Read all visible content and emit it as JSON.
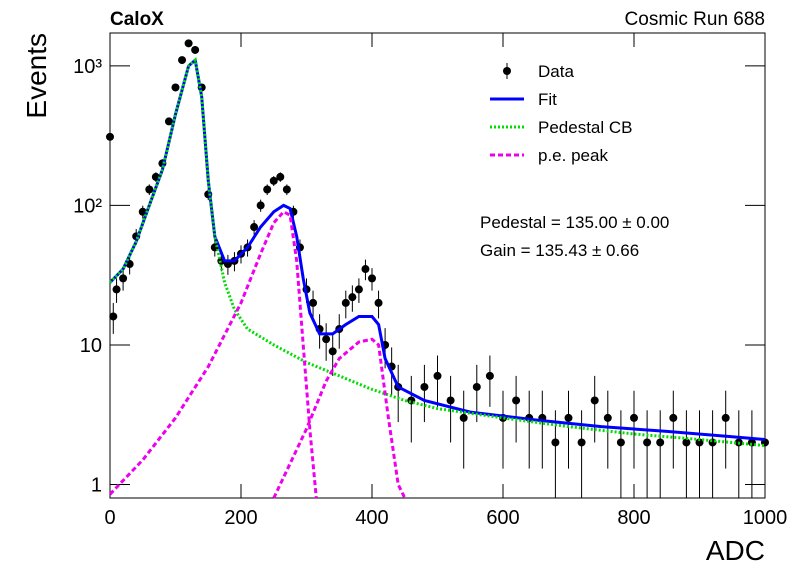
{
  "chart_data": {
    "type": "scatter",
    "title": "CaloX",
    "subtitle": "Cosmic Run 688",
    "xlabel": "ADC",
    "ylabel": "Events",
    "annotations": [
      "Pedestal = 135.00 ± 0.00",
      "Gain = 135.43 ± 0.66"
    ],
    "log_y": true,
    "legend": "upper right",
    "xlim": [
      0,
      1000
    ],
    "ylim": [
      0.8,
      1720
    ],
    "xticks": [
      0,
      200,
      400,
      600,
      800,
      1000
    ],
    "yticks": [
      1,
      10,
      {
        "value": 100,
        "label": "10²"
      },
      {
        "value": 1000,
        "label": "10³"
      }
    ],
    "series": [
      {
        "name": "Data",
        "color": "#000000",
        "style": "points",
        "x": [
          0,
          5,
          10,
          20,
          30,
          40,
          50,
          60,
          70,
          80,
          90,
          100,
          110,
          120,
          130,
          140,
          150,
          160,
          170,
          180,
          190,
          200,
          210,
          220,
          230,
          240,
          250,
          260,
          270,
          280,
          290,
          300,
          310,
          320,
          330,
          340,
          350,
          360,
          370,
          380,
          390,
          400,
          410,
          420,
          430,
          440,
          460,
          480,
          500,
          520,
          540,
          560,
          580,
          600,
          620,
          640,
          660,
          680,
          700,
          720,
          740,
          760,
          780,
          800,
          820,
          840,
          860,
          880,
          900,
          920,
          940,
          960,
          980,
          1000
        ],
        "values": [
          310,
          16,
          25,
          30,
          38,
          60,
          90,
          130,
          160,
          200,
          400,
          700,
          1100,
          1450,
          1300,
          700,
          120,
          50,
          40,
          38,
          40,
          45,
          50,
          70,
          100,
          130,
          150,
          160,
          130,
          90,
          50,
          25,
          20,
          13,
          11,
          9,
          13,
          20,
          22,
          25,
          35,
          30,
          20,
          10,
          7,
          5,
          4,
          5,
          6,
          4,
          3,
          5,
          6,
          3,
          4,
          3,
          3,
          2,
          3,
          2,
          4,
          3,
          2,
          3,
          2,
          2,
          3,
          2,
          2,
          2,
          3,
          2,
          2,
          2
        ],
        "errors": [
          18,
          4,
          5,
          5.5,
          6,
          7.7,
          9.5,
          11.4,
          12.6,
          14,
          20,
          26,
          33,
          38,
          36,
          26,
          11,
          7,
          6.3,
          6.2,
          6.3,
          6.7,
          7,
          8.4,
          10,
          11.4,
          12.2,
          12.6,
          11.4,
          9.5,
          7,
          5,
          4.5,
          3.6,
          3.3,
          3,
          3.6,
          4.5,
          4.7,
          5,
          5.9,
          5.5,
          4.5,
          3.2,
          2.6,
          2.2,
          2,
          2.2,
          2.4,
          2,
          1.7,
          2.2,
          2.4,
          1.7,
          2,
          1.7,
          1.7,
          1.4,
          1.7,
          1.4,
          2,
          1.7,
          1.4,
          1.7,
          1.4,
          1.4,
          1.7,
          1.4,
          1.4,
          1.4,
          1.7,
          1.4,
          1.4,
          1.4
        ]
      },
      {
        "name": "Fit",
        "color": "#0000ff",
        "style": "solid",
        "x": [
          0,
          20,
          40,
          60,
          80,
          100,
          120,
          130,
          140,
          150,
          160,
          175,
          190,
          210,
          230,
          250,
          265,
          275,
          285,
          295,
          305,
          320,
          340,
          360,
          380,
          400,
          410,
          420,
          440,
          480,
          550,
          650,
          750,
          850,
          950,
          1000
        ],
        "values": [
          28,
          35,
          55,
          100,
          180,
          450,
          1000,
          1100,
          600,
          150,
          60,
          40,
          40,
          50,
          70,
          90,
          100,
          95,
          60,
          30,
          17,
          12,
          12,
          14,
          16,
          16,
          14,
          8,
          5,
          4,
          3.3,
          2.9,
          2.6,
          2.4,
          2.2,
          2.1
        ]
      },
      {
        "name": "Pedestal CB",
        "color": "#00dd00",
        "style": "dotted",
        "x": [
          0,
          20,
          40,
          60,
          80,
          100,
          120,
          130,
          140,
          150,
          160,
          175,
          190,
          210,
          250,
          300,
          350,
          400,
          450,
          500,
          600,
          700,
          800,
          900,
          1000
        ],
        "values": [
          28,
          35,
          55,
          100,
          180,
          450,
          1000,
          1100,
          600,
          150,
          60,
          28,
          18,
          13,
          10,
          7.5,
          6,
          4.8,
          4,
          3.5,
          3,
          2.6,
          2.3,
          2.1,
          1.9
        ]
      },
      {
        "name": "p.e. peak",
        "color": "#ee00ee",
        "style": "dashed",
        "x": [
          0,
          50,
          100,
          150,
          200,
          230,
          250,
          265,
          275,
          285,
          295,
          305,
          315,
          null,
          250,
          300,
          330,
          350,
          380,
          400,
          410,
          425,
          440,
          450
        ],
        "values": [
          0.85,
          1.5,
          3,
          7,
          20,
          45,
          75,
          90,
          85,
          40,
          10,
          2.5,
          0.8,
          null,
          0.8,
          2.5,
          5.5,
          8,
          10.5,
          11,
          10,
          3,
          1,
          0.8
        ]
      }
    ]
  }
}
